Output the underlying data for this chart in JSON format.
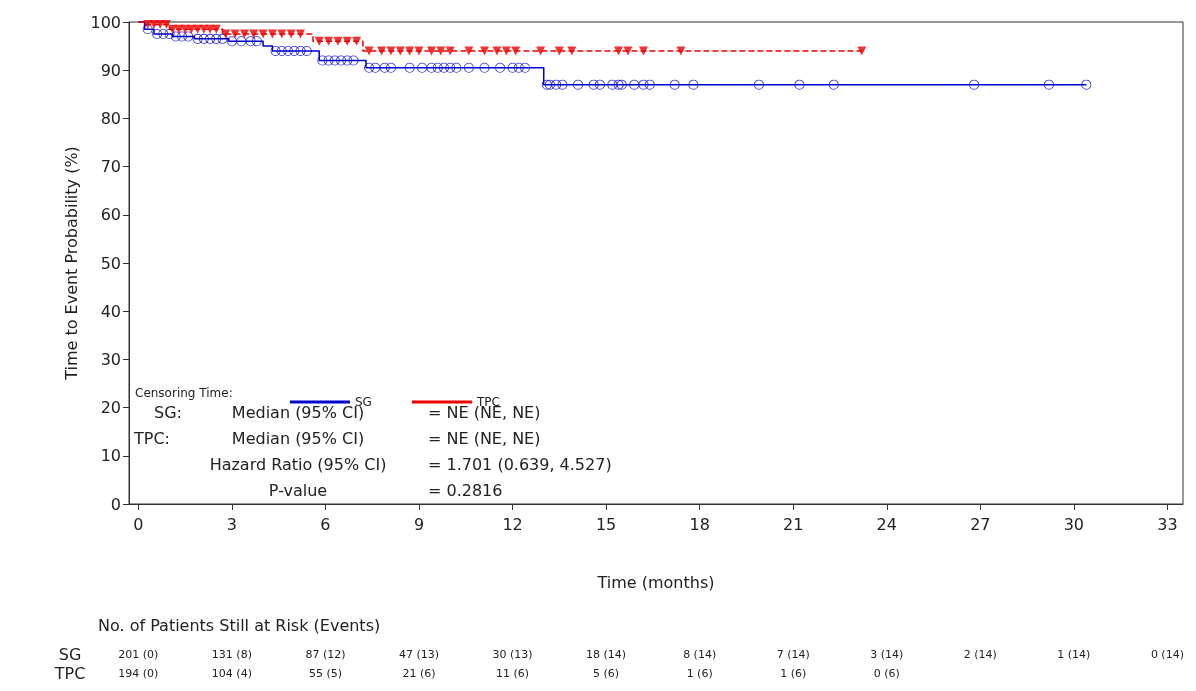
{
  "chart_data": {
    "type": "step",
    "xlabel": "Time (months)",
    "ylabel": "Time to Event Probability (%)",
    "legend_title": "Censoring Time:",
    "legend": "bottom left",
    "grid": false,
    "xlim": [
      -0.3,
      33.5
    ],
    "xticks": [
      0,
      3,
      6,
      9,
      12,
      15,
      18,
      21,
      24,
      27,
      30,
      33
    ],
    "ylim": [
      0,
      100
    ],
    "yticks": [
      0,
      10,
      20,
      30,
      40,
      50,
      60,
      70,
      80,
      90,
      100
    ],
    "series": [
      {
        "name": "SG",
        "color": "#0000cc",
        "line_style": "solid",
        "x": [
          0,
          0.2,
          0.5,
          1.1,
          1.8,
          2.9,
          4.0,
          4.3,
          5.8,
          7.3,
          13.0,
          30.4
        ],
        "values": [
          100,
          98.5,
          97.5,
          97,
          96.5,
          96,
          95,
          94,
          92,
          90.5,
          87,
          87
        ]
      },
      {
        "type": "scatter",
        "color": "#0000cc",
        "marker": "circle",
        "x": [
          0.3,
          0.6,
          0.8,
          1.0,
          1.2,
          1.4,
          1.6,
          1.9,
          2.1,
          2.3,
          2.5,
          2.7,
          3.0,
          3.3,
          3.6,
          3.8,
          4.4,
          4.6,
          4.8,
          5.0,
          5.2,
          5.4,
          5.9,
          6.1,
          6.3,
          6.5,
          6.7,
          6.9,
          7.4,
          7.6,
          7.9,
          8.1,
          8.7,
          9.1,
          9.4,
          9.6,
          9.8,
          10.0,
          10.2,
          10.6,
          11.1,
          11.6,
          12.0,
          12.2,
          12.4,
          13.1,
          13.2,
          13.4,
          13.6,
          14.1,
          14.6,
          14.8,
          15.2,
          15.4,
          15.5,
          15.9,
          16.2,
          16.4,
          17.2,
          17.8,
          19.9,
          21.2,
          22.3,
          26.8,
          29.2,
          30.4
        ],
        "values": [
          98.5,
          97.5,
          97.5,
          97.5,
          97,
          97,
          97,
          96.5,
          96.5,
          96.5,
          96.5,
          96.5,
          96,
          96,
          96,
          96,
          94,
          94,
          94,
          94,
          94,
          94,
          92,
          92,
          92,
          92,
          92,
          92,
          90.5,
          90.5,
          90.5,
          90.5,
          90.5,
          90.5,
          90.5,
          90.5,
          90.5,
          90.5,
          90.5,
          90.5,
          90.5,
          90.5,
          90.5,
          90.5,
          90.5,
          87,
          87,
          87,
          87,
          87,
          87,
          87,
          87,
          87,
          87,
          87,
          87,
          87,
          87,
          87,
          87,
          87,
          87,
          87,
          87,
          87
        ]
      },
      {
        "name": "TPC",
        "color": "#ee0000",
        "line_style": "dashed",
        "x": [
          0,
          0.2,
          1.0,
          2.7,
          5.6,
          7.2,
          23.2
        ],
        "values": [
          100,
          99.5,
          98.5,
          97.5,
          96,
          94,
          94
        ]
      },
      {
        "type": "scatter",
        "color": "#ee0000",
        "marker": "triangle",
        "x": [
          0.3,
          0.5,
          0.7,
          0.9,
          1.1,
          1.3,
          1.5,
          1.7,
          1.9,
          2.1,
          2.3,
          2.5,
          2.8,
          3.1,
          3.4,
          3.7,
          4.0,
          4.3,
          4.6,
          4.9,
          5.2,
          5.8,
          6.1,
          6.4,
          6.7,
          7.0,
          7.4,
          7.8,
          8.1,
          8.4,
          8.7,
          9.0,
          9.4,
          9.7,
          10.0,
          10.6,
          11.1,
          11.5,
          11.8,
          12.1,
          12.9,
          13.5,
          13.9,
          15.4,
          15.7,
          16.2,
          17.4,
          23.2
        ],
        "values": [
          99.5,
          99.5,
          99.5,
          99.5,
          98.5,
          98.5,
          98.5,
          98.5,
          98.5,
          98.5,
          98.5,
          98.5,
          97.5,
          97.5,
          97.5,
          97.5,
          97.5,
          97.5,
          97.5,
          97.5,
          97.5,
          96,
          96,
          96,
          96,
          96,
          94,
          94,
          94,
          94,
          94,
          94,
          94,
          94,
          94,
          94,
          94,
          94,
          94,
          94,
          94,
          94,
          94,
          94,
          94,
          94,
          94,
          94
        ]
      }
    ],
    "annotations": [
      "SG:",
      "Median (95% CI)",
      "= NE (NE, NE)",
      "TPC:",
      "Median (95% CI)",
      "= NE (NE, NE)",
      "Hazard Ratio (95% CI)",
      "= 1.701 (0.639, 4.527)",
      "P-value",
      "= 0.2816",
      "No. of Patients Still at Risk (Events)",
      "SG",
      "201 (0)",
      "131 (8)",
      "87 (12)",
      "47 (13)",
      "30 (13)",
      "18 (14)",
      "8 (14)",
      "7 (14)",
      "3 (14)",
      "2 (14)",
      "1 (14)",
      "0 (14)",
      "TPC",
      "194 (0)",
      "104 (4)",
      "55 (5)",
      "21 (6)",
      "11 (6)",
      "5 (6)",
      "1 (6)",
      "1 (6)",
      "0 (6)"
    ]
  }
}
